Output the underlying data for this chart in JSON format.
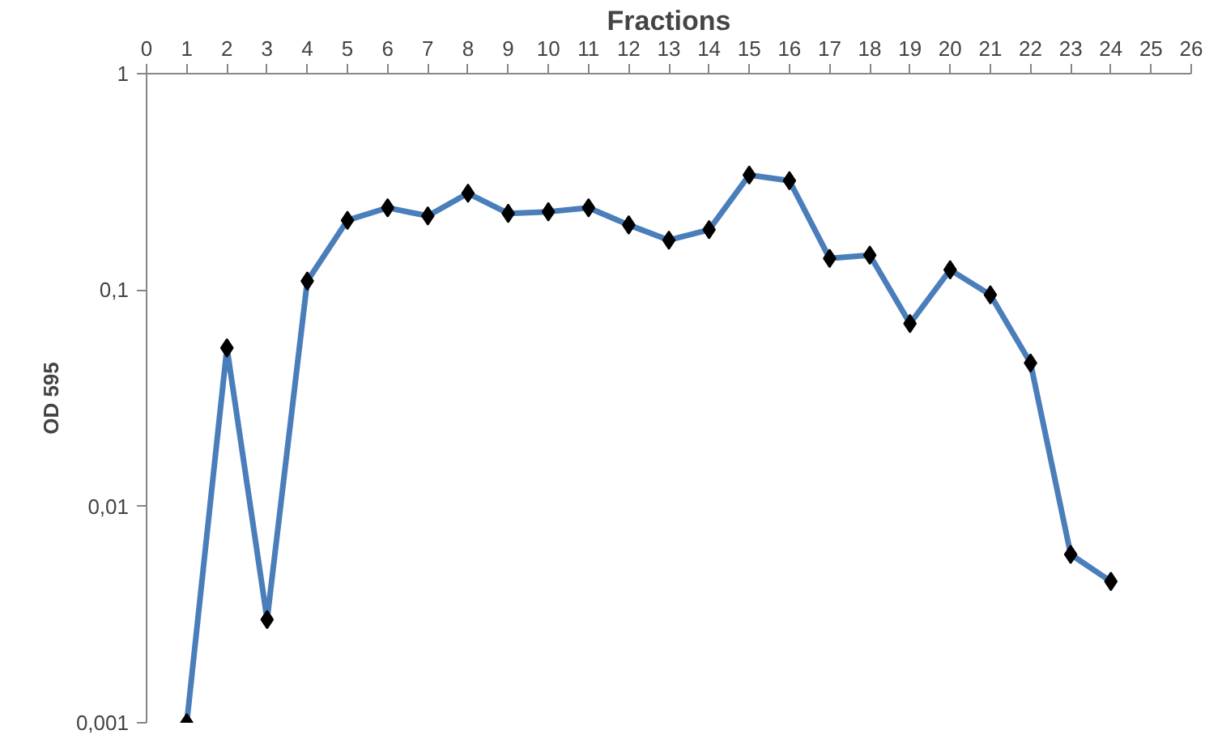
{
  "chart_data": {
    "type": "line",
    "xlabel": "Fractions",
    "ylabel": "OD 595",
    "x": [
      1,
      2,
      3,
      4,
      5,
      6,
      7,
      8,
      9,
      10,
      11,
      12,
      13,
      14,
      15,
      16,
      17,
      18,
      19,
      20,
      21,
      22,
      23,
      24
    ],
    "series": [
      {
        "color": "#4a7ebb",
        "values": [
          0.001,
          0.054,
          0.003,
          0.11,
          0.21,
          0.24,
          0.22,
          0.28,
          0.226,
          0.23,
          0.24,
          0.2,
          0.17,
          0.19,
          0.34,
          0.32,
          0.14,
          0.145,
          0.07,
          0.124,
          0.095,
          0.046,
          0.006,
          0.0045
        ]
      }
    ],
    "log": "y",
    "xlim": [
      0,
      26
    ],
    "xticks": [
      0,
      1,
      2,
      3,
      4,
      5,
      6,
      7,
      8,
      9,
      10,
      11,
      12,
      13,
      14,
      15,
      16,
      17,
      18,
      19,
      20,
      21,
      22,
      23,
      24,
      25,
      26
    ],
    "ylim": [
      0.001,
      1
    ],
    "yticks": [
      {
        "value": 0.001,
        "label": "0,001"
      },
      {
        "value": 0.01,
        "label": "0,01"
      },
      {
        "value": 0.1,
        "label": "0,1"
      },
      {
        "value": 1,
        "label": "1"
      }
    ],
    "grid": false,
    "marker": "diamond",
    "line_style": "solid"
  }
}
